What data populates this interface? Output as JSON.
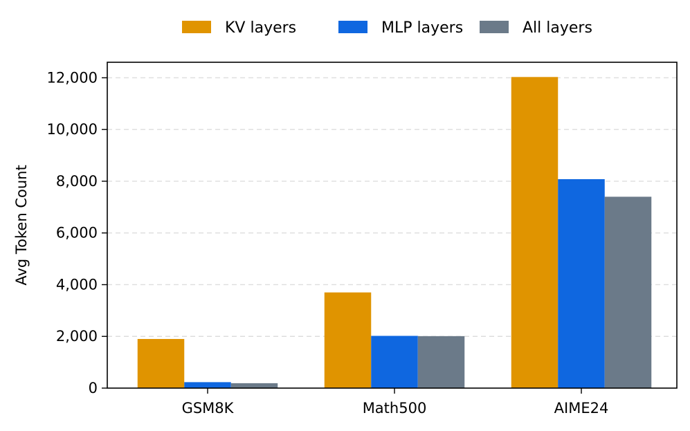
{
  "chart_data": {
    "type": "bar",
    "title": "",
    "xlabel": "",
    "ylabel": "Avg Token Count",
    "categories": [
      "GSM8K",
      "Math500",
      "AIME24"
    ],
    "series": [
      {
        "name": "KV layers",
        "color": "#E09400",
        "values": [
          1900,
          3700,
          12030
        ]
      },
      {
        "name": "MLP layers",
        "color": "#0F67E0",
        "values": [
          230,
          2020,
          8080
        ]
      },
      {
        "name": "All layers",
        "color": "#6B7A89",
        "values": [
          190,
          2010,
          7400
        ]
      }
    ],
    "ylim": [
      0,
      12600
    ],
    "yticks": [
      0,
      2000,
      4000,
      6000,
      8000,
      10000,
      12000
    ],
    "ytick_labels": [
      "0",
      "2,000",
      "4,000",
      "6,000",
      "8,000",
      "10,000",
      "12,000"
    ],
    "grid": "y dashed",
    "legend_position": "top-center"
  }
}
